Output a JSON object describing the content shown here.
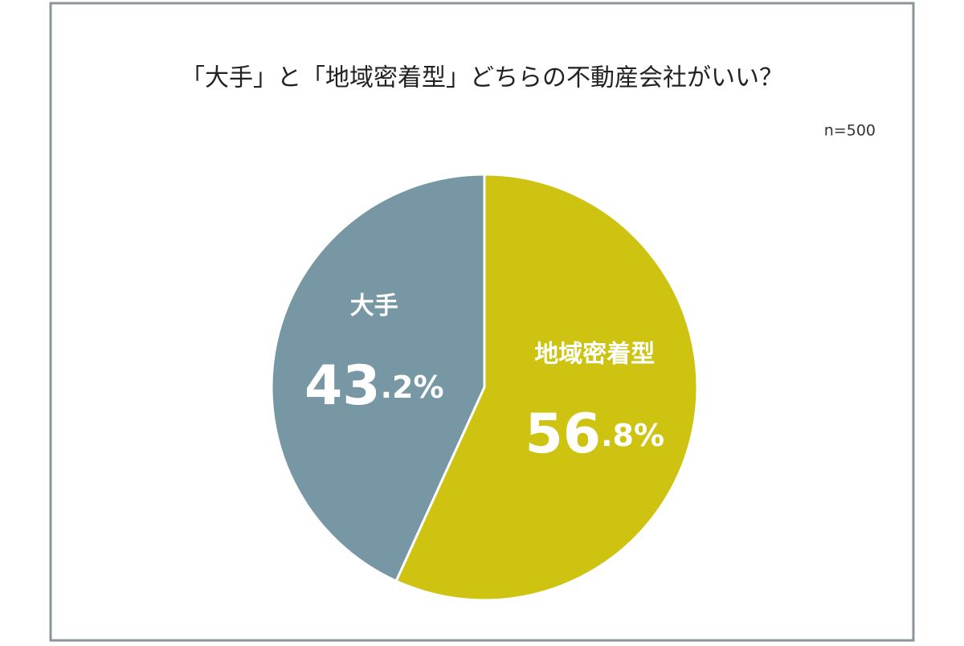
{
  "chart_data": {
    "type": "pie",
    "title": "「大手」と「地域密着型」どちらの不動産会社がいい？",
    "annotation": "n=500",
    "categories": [
      "大手",
      "地域密着型"
    ],
    "values": [
      43.2,
      56.8
    ],
    "value_labels": [
      "43.2%",
      "56.8%"
    ],
    "colors": [
      "#7697a3",
      "#cdc310"
    ]
  }
}
